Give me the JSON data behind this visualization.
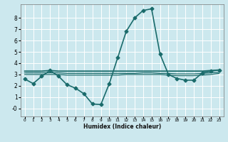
{
  "xlabel": "Humidex (Indice chaleur)",
  "background_color": "#cce8ee",
  "grid_color": "#ffffff",
  "line_color": "#1a6b6b",
  "xlim": [
    -0.5,
    23.5
  ],
  "ylim": [
    -0.7,
    9.2
  ],
  "xticks": [
    0,
    1,
    2,
    3,
    4,
    5,
    6,
    7,
    8,
    9,
    10,
    11,
    12,
    13,
    14,
    15,
    16,
    17,
    18,
    19,
    20,
    21,
    22,
    23
  ],
  "yticks": [
    0,
    1,
    2,
    3,
    4,
    5,
    6,
    7,
    8
  ],
  "series": [
    {
      "x": [
        0,
        1,
        2,
        3,
        4,
        5,
        6,
        7,
        8,
        9,
        10,
        11,
        12,
        13,
        14,
        15,
        16,
        17,
        18,
        19,
        20,
        21,
        22,
        23
      ],
      "y": [
        2.6,
        2.2,
        2.85,
        3.35,
        2.85,
        2.1,
        1.8,
        1.3,
        0.4,
        0.35,
        2.2,
        4.5,
        6.8,
        8.0,
        8.65,
        8.8,
        4.8,
        3.0,
        2.65,
        2.5,
        2.5,
        3.15,
        3.3,
        3.4
      ],
      "marker": "D",
      "markersize": 2.5,
      "linewidth": 1.2
    },
    {
      "x": [
        0,
        1,
        2,
        3,
        4,
        5,
        6,
        7,
        8,
        9,
        10,
        11,
        12,
        13,
        14,
        15,
        16,
        17,
        18,
        19,
        20,
        21,
        22,
        23
      ],
      "y": [
        3.3,
        3.3,
        3.3,
        3.35,
        3.3,
        3.3,
        3.3,
        3.3,
        3.3,
        3.3,
        3.3,
        3.3,
        3.3,
        3.3,
        3.3,
        3.3,
        3.3,
        3.3,
        3.3,
        3.3,
        3.3,
        3.3,
        3.35,
        3.4
      ],
      "marker": null,
      "linewidth": 1.3
    },
    {
      "x": [
        0,
        1,
        2,
        3,
        4,
        5,
        6,
        7,
        8,
        9,
        10,
        11,
        12,
        13,
        14,
        15,
        16,
        17,
        18,
        19,
        20,
        21,
        22,
        23
      ],
      "y": [
        3.0,
        3.0,
        3.0,
        3.0,
        3.0,
        2.95,
        2.95,
        2.95,
        2.95,
        2.95,
        2.95,
        2.95,
        3.0,
        3.0,
        3.0,
        3.0,
        3.0,
        2.95,
        2.9,
        2.9,
        2.9,
        2.95,
        3.0,
        3.1
      ],
      "marker": null,
      "linewidth": 0.9
    },
    {
      "x": [
        0,
        1,
        2,
        3,
        4,
        5,
        6,
        7,
        8,
        9,
        10,
        11,
        12,
        13,
        14,
        15,
        16,
        17,
        18,
        19,
        20,
        21,
        22,
        23
      ],
      "y": [
        3.15,
        3.15,
        3.15,
        3.15,
        3.15,
        3.1,
        3.1,
        3.1,
        3.1,
        3.1,
        3.1,
        3.1,
        3.1,
        3.1,
        3.15,
        3.15,
        3.1,
        3.1,
        3.05,
        3.05,
        3.05,
        3.1,
        3.15,
        3.2
      ],
      "marker": null,
      "linewidth": 0.9
    }
  ]
}
